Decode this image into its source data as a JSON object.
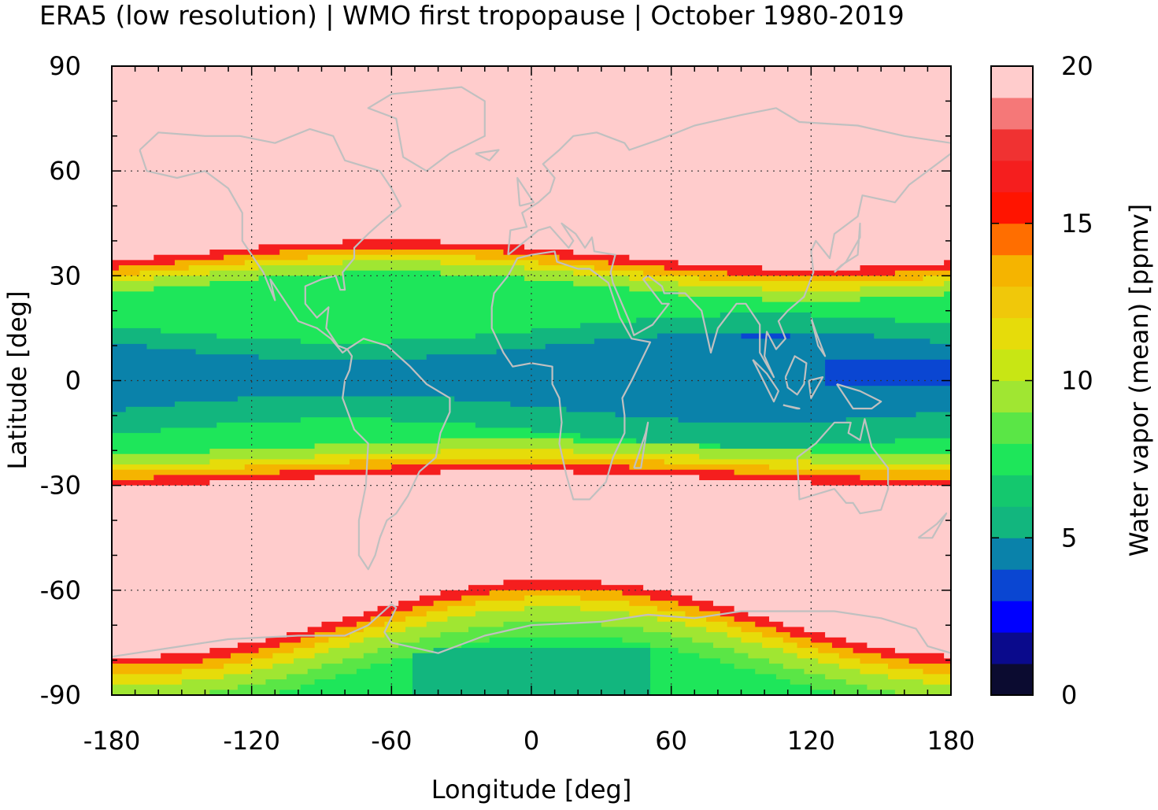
{
  "chart_data": {
    "type": "heatmap",
    "title": "ERA5 (low resolution) | WMO first tropopause | October 1980-2019",
    "xlabel": "Longitude [deg]",
    "ylabel": "Latitude [deg]",
    "xlim": [
      -180,
      180
    ],
    "ylim": [
      -90,
      90
    ],
    "xticks": [
      -180,
      -120,
      -60,
      0,
      60,
      120,
      180
    ],
    "yticks": [
      -90,
      -60,
      -30,
      0,
      30,
      60,
      90
    ],
    "grid": true,
    "colorbar": {
      "label": "Water vapor (mean) [ppmv]",
      "range": [
        0,
        20
      ],
      "ticks": [
        0,
        5,
        10,
        15,
        20
      ],
      "levels": [
        {
          "from": 0,
          "to": 1,
          "color": "#0b0b30"
        },
        {
          "from": 1,
          "to": 2,
          "color": "#0a0a8c"
        },
        {
          "from": 2,
          "to": 3,
          "color": "#0000ff"
        },
        {
          "from": 3,
          "to": 4,
          "color": "#0a46d2"
        },
        {
          "from": 4,
          "to": 5,
          "color": "#0a82aa"
        },
        {
          "from": 5,
          "to": 6,
          "color": "#12b67e"
        },
        {
          "from": 6,
          "to": 7,
          "color": "#14c86e"
        },
        {
          "from": 7,
          "to": 8,
          "color": "#1ee65a"
        },
        {
          "from": 8,
          "to": 9,
          "color": "#5ae646"
        },
        {
          "from": 9,
          "to": 10,
          "color": "#a0e632"
        },
        {
          "from": 10,
          "to": 11,
          "color": "#c8e614"
        },
        {
          "from": 11,
          "to": 12,
          "color": "#e6dc0a"
        },
        {
          "from": 12,
          "to": 13,
          "color": "#f0c80a"
        },
        {
          "from": 13,
          "to": 14,
          "color": "#f5b400"
        },
        {
          "from": 14,
          "to": 15,
          "color": "#ff6e00"
        },
        {
          "from": 15,
          "to": 16,
          "color": "#ff1400"
        },
        {
          "from": 16,
          "to": 17,
          "color": "#f51e1e"
        },
        {
          "from": 17,
          "to": 18,
          "color": "#f03232"
        },
        {
          "from": 18,
          "to": 19,
          "color": "#f57878"
        },
        {
          "from": 19,
          "to": 20,
          "color": "#ffcccc"
        }
      ]
    },
    "field_description_bands": [
      {
        "lat_from": 38,
        "lat_to": 90,
        "value": 20
      },
      {
        "lat_from": 30,
        "lat_to": 38,
        "value": 12
      },
      {
        "lat_from": 10,
        "lat_to": 30,
        "value": 7
      },
      {
        "lat_from": -10,
        "lat_to": 10,
        "value": 4.5
      },
      {
        "lat_from": -25,
        "lat_to": -10,
        "value": 7
      },
      {
        "lat_from": -30,
        "lat_to": -25,
        "value": 12
      },
      {
        "lat_from": -55,
        "lat_to": -30,
        "value": 20
      },
      {
        "lat_from": -62,
        "lat_to": -55,
        "value": 16
      },
      {
        "lat_from": -72,
        "lat_to": -62,
        "value": 11
      },
      {
        "lat_from": -90,
        "lat_to": -72,
        "value": 6
      }
    ],
    "coastline_color": "#c0c0c0"
  }
}
